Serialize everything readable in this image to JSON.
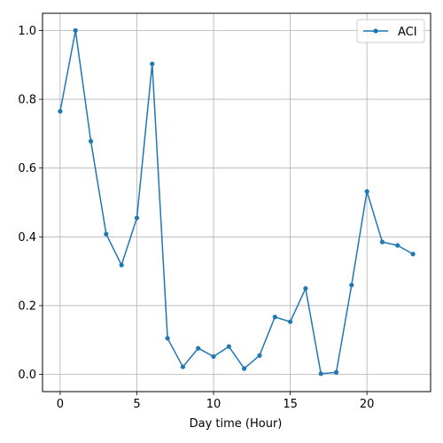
{
  "chart_data": {
    "type": "line",
    "title": "",
    "xlabel": "Day time (Hour)",
    "ylabel": "",
    "xlim": [
      -1.15,
      24.15
    ],
    "ylim": [
      -0.05,
      1.05
    ],
    "xticks": [
      0,
      5,
      10,
      15,
      20
    ],
    "yticks": [
      0.0,
      0.2,
      0.4,
      0.6,
      0.8,
      1.0
    ],
    "xtick_labels": [
      "0",
      "5",
      "10",
      "15",
      "20"
    ],
    "ytick_labels": [
      "0.0",
      "0.2",
      "0.4",
      "0.6",
      "0.8",
      "1.0"
    ],
    "grid": true,
    "legend_position": "top-right",
    "colors": {
      "series": "#1f77b4",
      "grid": "#b0b0b0",
      "axes": "#000000"
    },
    "series": [
      {
        "name": "ACI",
        "x": [
          0,
          1,
          2,
          3,
          4,
          5,
          6,
          7,
          8,
          9,
          10,
          11,
          12,
          13,
          14,
          15,
          16,
          17,
          18,
          19,
          20,
          21,
          22,
          23
        ],
        "values": [
          0.765,
          1.0,
          0.678,
          0.408,
          0.318,
          0.455,
          0.903,
          0.105,
          0.022,
          0.076,
          0.052,
          0.081,
          0.017,
          0.055,
          0.167,
          0.153,
          0.25,
          0.002,
          0.006,
          0.26,
          0.532,
          0.385,
          0.375,
          0.35
        ]
      }
    ]
  }
}
